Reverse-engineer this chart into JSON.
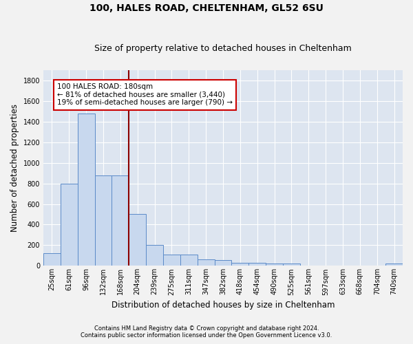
{
  "title_line1": "100, HALES ROAD, CHELTENHAM, GL52 6SU",
  "title_line2": "Size of property relative to detached houses in Cheltenham",
  "xlabel": "Distribution of detached houses by size in Cheltenham",
  "ylabel": "Number of detached properties",
  "footnote_line1": "Contains HM Land Registry data © Crown copyright and database right 2024.",
  "footnote_line2": "Contains public sector information licensed under the Open Government Licence v3.0.",
  "categories": [
    "25sqm",
    "61sqm",
    "96sqm",
    "132sqm",
    "168sqm",
    "204sqm",
    "239sqm",
    "275sqm",
    "311sqm",
    "347sqm",
    "382sqm",
    "418sqm",
    "454sqm",
    "490sqm",
    "525sqm",
    "561sqm",
    "597sqm",
    "633sqm",
    "668sqm",
    "704sqm",
    "740sqm"
  ],
  "values": [
    120,
    800,
    1480,
    880,
    880,
    500,
    200,
    110,
    110,
    65,
    55,
    30,
    30,
    20,
    20,
    5,
    5,
    5,
    5,
    5,
    20
  ],
  "bar_color": "#c8d8ee",
  "bar_edge_color": "#5b8ac8",
  "subject_line_color": "#8b0000",
  "annotation_text": "100 HALES ROAD: 180sqm\n← 81% of detached houses are smaller (3,440)\n19% of semi-detached houses are larger (790) →",
  "annotation_box_color": "#ffffff",
  "annotation_box_edge_color": "#cc0000",
  "ylim": [
    0,
    1900
  ],
  "background_color": "#dde5f0",
  "grid_color": "#ffffff",
  "fig_background": "#f2f2f2",
  "title_fontsize": 10,
  "subtitle_fontsize": 9,
  "axis_label_fontsize": 8.5,
  "tick_fontsize": 7,
  "annotation_fontsize": 7.5
}
